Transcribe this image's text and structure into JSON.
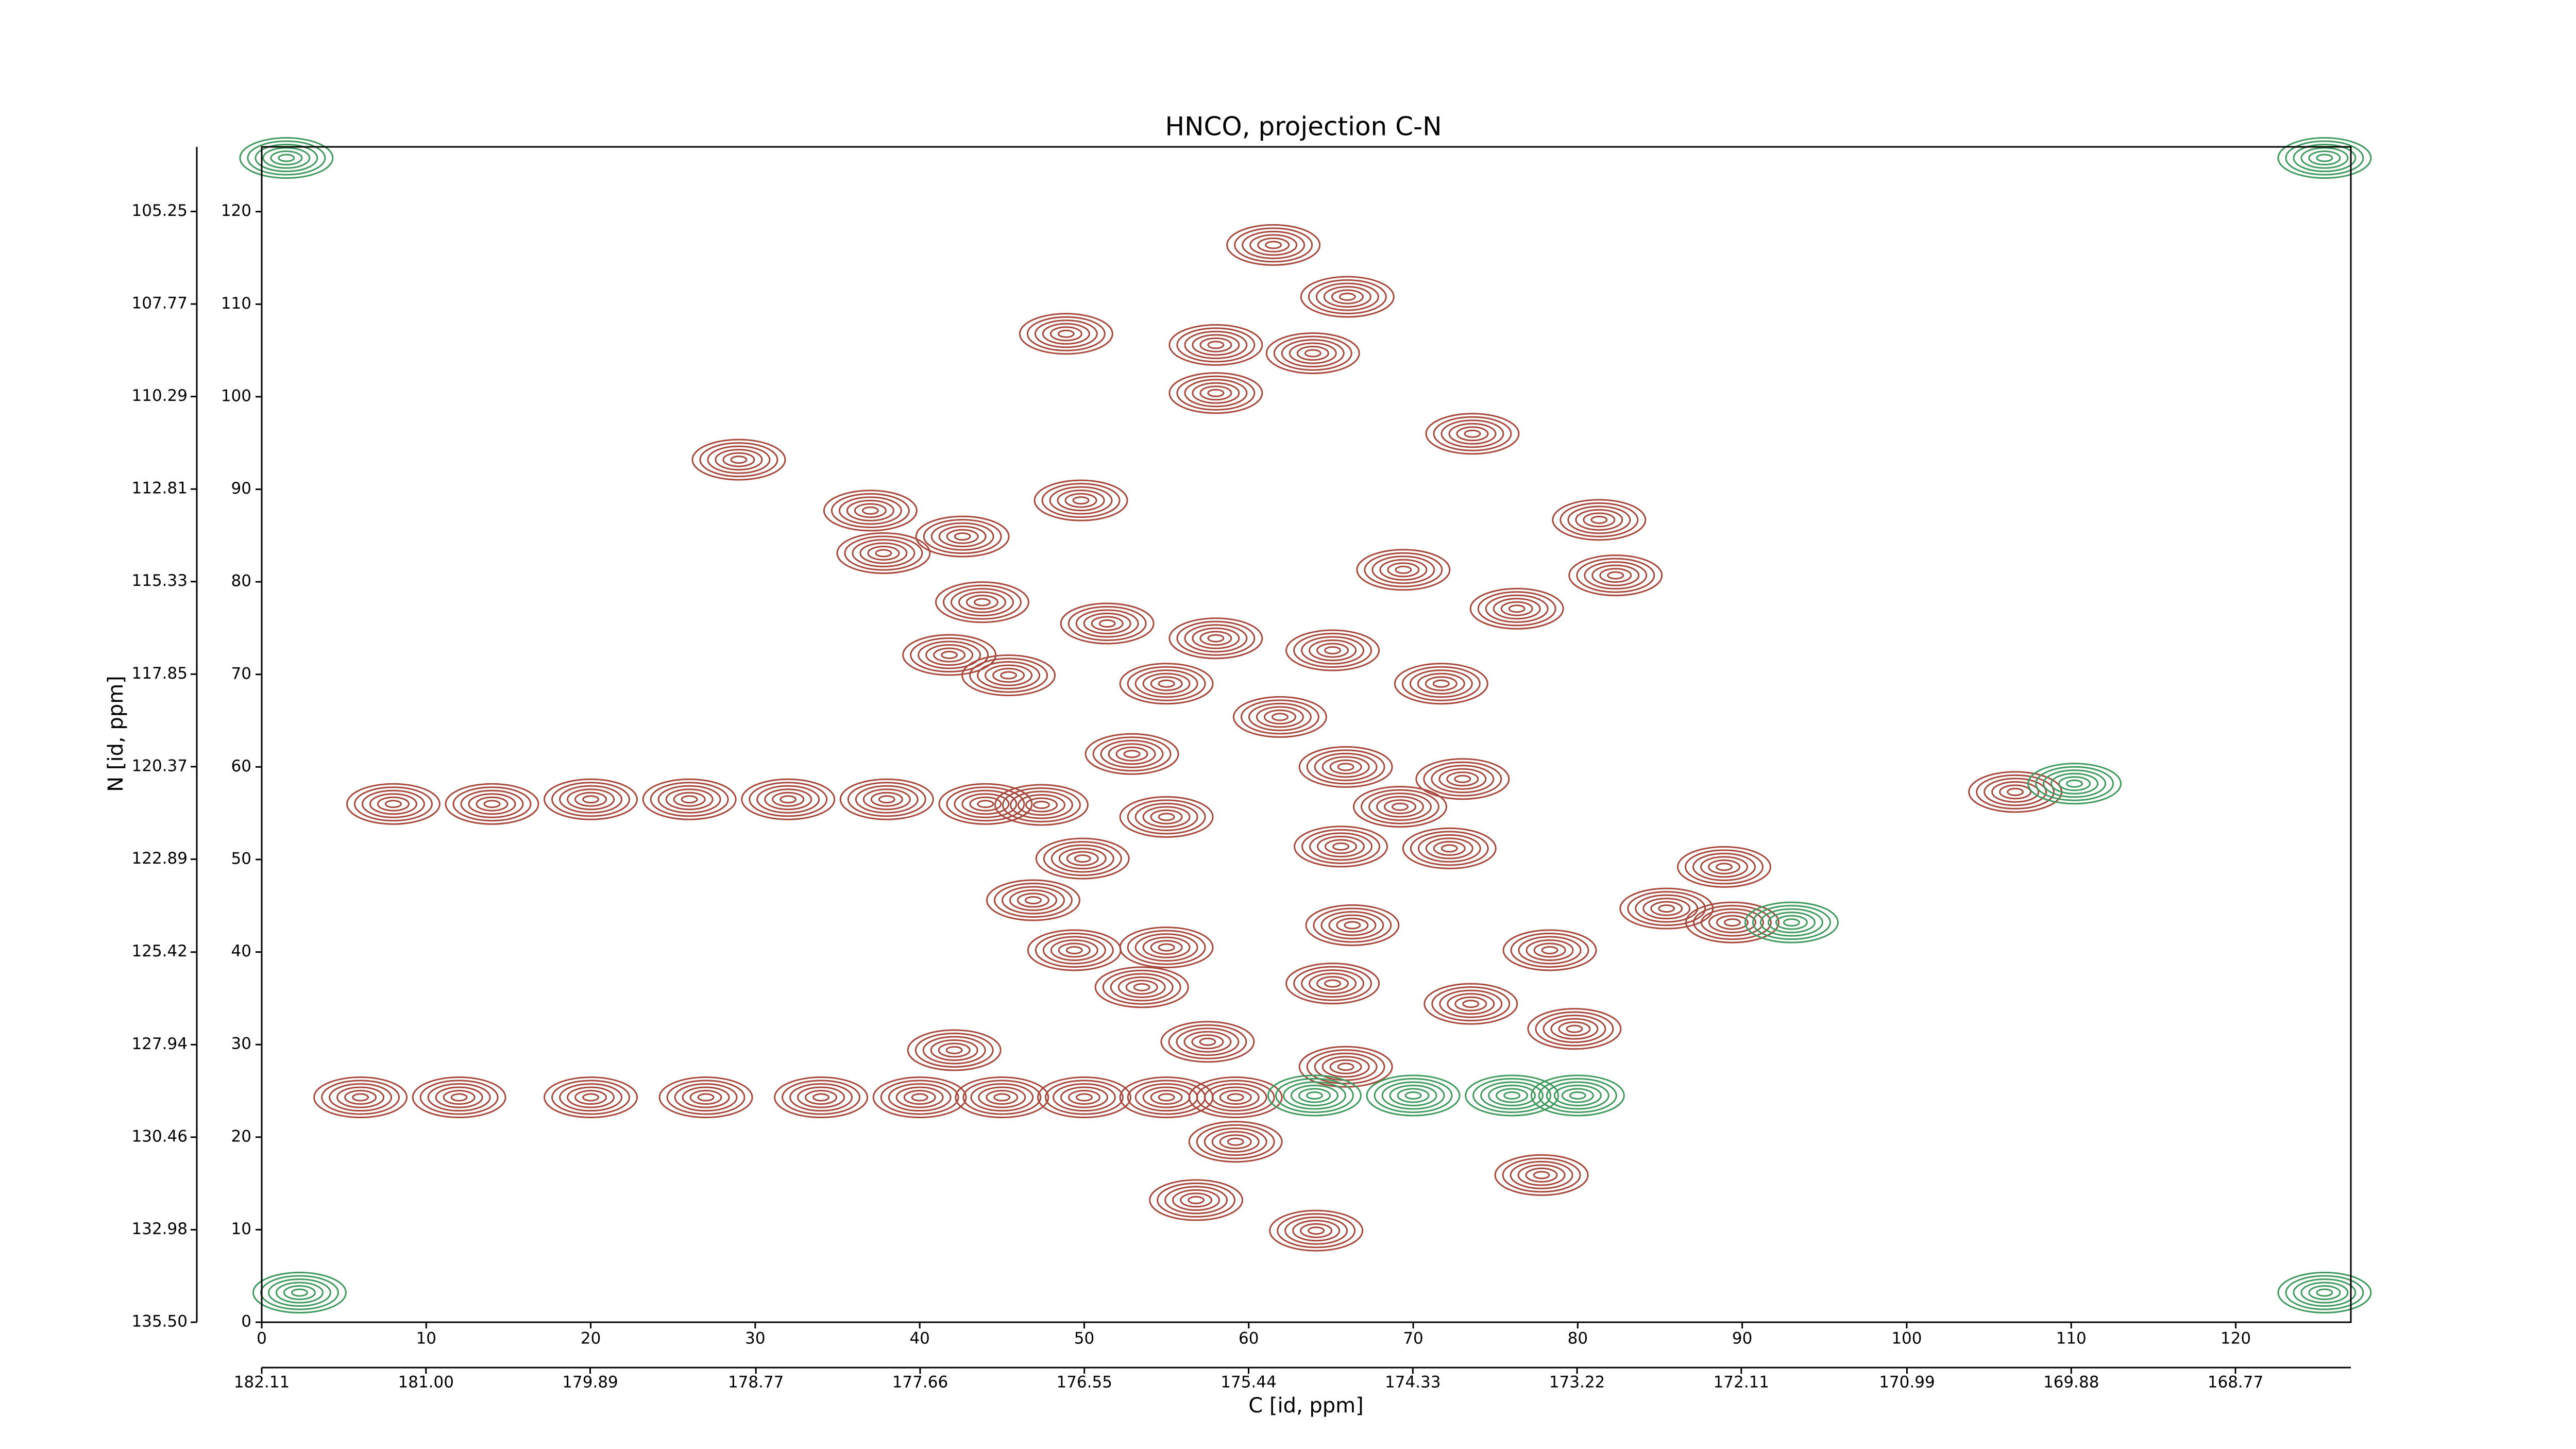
{
  "chart_data": {
    "type": "contour",
    "title": "HNCO, projection C-N",
    "xlabel": "C [id, ppm]",
    "ylabel": "N [id, ppm]",
    "xlim": [
      0,
      127
    ],
    "ylim": [
      0,
      127
    ],
    "xticks": [
      0,
      10,
      20,
      30,
      40,
      50,
      60,
      70,
      80,
      90,
      100,
      110,
      120
    ],
    "yticks": [
      0,
      10,
      20,
      30,
      40,
      50,
      60,
      70,
      80,
      90,
      100,
      110,
      120
    ],
    "x2lim": [
      182.11,
      167.99
    ],
    "x2ticks": [
      182.11,
      {
        "value": 181,
        "label": "181.00"
      },
      179.89,
      178.77,
      177.66,
      176.55,
      175.44,
      174.33,
      173.22,
      172.11,
      170.99,
      169.88,
      168.77
    ],
    "y2lim": [
      135.5,
      103.49
    ],
    "y2ticks": [
      {
        "value": 135.5,
        "label": "135.50"
      },
      132.98,
      130.46,
      127.94,
      125.42,
      122.89,
      120.37,
      117.85,
      115.33,
      112.81,
      110.29,
      107.77,
      105.25
    ],
    "series": [
      {
        "color": "#a8473c",
        "x": [
          61.5,
          66.0,
          48.9,
          58.0,
          63.9,
          58.0,
          73.6,
          29.0,
          49.8,
          37.0,
          42.6,
          37.8,
          81.3,
          69.4,
          82.3,
          76.3,
          43.8,
          51.4,
          58.0,
          41.8,
          65.1,
          45.4,
          71.7,
          55.0,
          61.9,
          52.9,
          65.9,
          73.0,
          47.4,
          106.6,
          69.2,
          55.0,
          65.6,
          72.2,
          49.9,
          88.9,
          46.9,
          85.4,
          89.4,
          66.3,
          78.3,
          55.0,
          49.4,
          65.1,
          53.5,
          73.5,
          79.8,
          42.1,
          57.5,
          65.9,
          59.2,
          59.2,
          77.8,
          56.8,
          64.1,
          8,
          14,
          20,
          26,
          32,
          38,
          44,
          6,
          12,
          20,
          27,
          34,
          40,
          45,
          50,
          55
        ],
        "y": [
          116.4,
          110.8,
          106.8,
          105.6,
          104.7,
          100.4,
          96.0,
          93.2,
          88.8,
          87.7,
          84.9,
          83.1,
          86.7,
          81.3,
          80.7,
          77.1,
          77.8,
          75.5,
          73.9,
          72.1,
          72.6,
          69.9,
          69.0,
          69.0,
          65.4,
          61.4,
          60.0,
          58.7,
          55.9,
          57.3,
          55.7,
          54.6,
          51.4,
          51.2,
          50.1,
          49.2,
          45.6,
          44.7,
          43.2,
          42.9,
          40.2,
          40.5,
          40.2,
          36.6,
          36.2,
          34.4,
          31.7,
          29.4,
          30.3,
          27.6,
          24.3,
          19.5,
          15.9,
          13.2,
          9.9,
          56,
          56,
          56.5,
          56.5,
          56.5,
          56.5,
          56,
          24.3,
          24.3,
          24.3,
          24.3,
          24.3,
          24.3,
          24.3,
          24.3,
          24.3
        ]
      },
      {
        "color": "#3f9a5e",
        "x": [
          64,
          70,
          76,
          80,
          1.5,
          125.4,
          2.3,
          125.4,
          110.2,
          93
        ],
        "y": [
          24.5,
          24.5,
          24.5,
          24.5,
          125.8,
          125.8,
          3.2,
          3.2,
          58.2,
          43.2
        ]
      }
    ]
  }
}
